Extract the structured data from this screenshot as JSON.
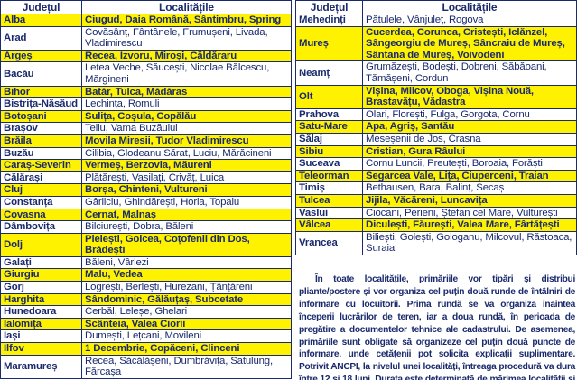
{
  "headers": {
    "county": "Județul",
    "places": "Localitățile"
  },
  "left_rows": [
    {
      "county": "Alba",
      "places": "Ciugud, Daia Română, Sântimbru, Spring",
      "hl": true
    },
    {
      "county": "Arad",
      "places": "Covăsânț, Fântânele, Frumușeni, Livada, Vladimirescu",
      "hl": false
    },
    {
      "county": "Argeș",
      "places": "Recea, Izvoru, Miroși, Căldăraru",
      "hl": true
    },
    {
      "county": "Bacău",
      "places": "Letea Veche, Săucești, Nicolae Bălcescu, Mărgineni",
      "hl": false
    },
    {
      "county": "Bihor",
      "places": "Batăr, Tulca, Mădăras",
      "hl": true
    },
    {
      "county": "Bistrița-Năsăud",
      "places": "Lechința, Romuli",
      "hl": false
    },
    {
      "county": "Botoșani",
      "places": "Sulița, Coșula, Copălău",
      "hl": true
    },
    {
      "county": "Brașov",
      "places": "Teliu, Vama Buzăului",
      "hl": false
    },
    {
      "county": "Brăila",
      "places": "Movila Miresii, Tudor Vladimirescu",
      "hl": true
    },
    {
      "county": "Buzău",
      "places": "Cilibia, Glodeanu Sărat, Luciu, Mărăcineni",
      "hl": false
    },
    {
      "county": "Caraș-Severin",
      "places": "Vermeș, Berzovia, Măureni",
      "hl": true
    },
    {
      "county": "Călărași",
      "places": "Plătărești, Vasilați, Crivăț, Luica",
      "hl": false
    },
    {
      "county": "Cluj",
      "places": "Borșa, Chinteni, Vultureni",
      "hl": true
    },
    {
      "county": "Constanța",
      "places": "Gârliciu, Ghindărești, Horia, Topalu",
      "hl": false
    },
    {
      "county": "Covasna",
      "places": "Cernat, Malnaș",
      "hl": true
    },
    {
      "county": "Dâmbovița",
      "places": "Bilciurești, Dobra, Băleni",
      "hl": false
    },
    {
      "county": "Dolj",
      "places": "Pielești, Goicea, Coțofenii din Dos, Brădești",
      "hl": true
    },
    {
      "county": "Galați",
      "places": "Băleni, Vârlezi",
      "hl": false
    },
    {
      "county": "Giurgiu",
      "places": "Malu, Vedea",
      "hl": true
    },
    {
      "county": "Gorj",
      "places": "Logrești, Berlești, Hurezani, Țânțăreni",
      "hl": false
    },
    {
      "county": "Harghita",
      "places": "Sândominic, Gălăuțaș, Subcetate",
      "hl": true
    },
    {
      "county": "Hunedoara",
      "places": "Cerbăl, Leleșe, Ghelari",
      "hl": false
    },
    {
      "county": "Ialomița",
      "places": "Scânteia, Valea Ciorii",
      "hl": true
    },
    {
      "county": "Iași",
      "places": "Dumești, Lețcani, Movileni",
      "hl": false
    },
    {
      "county": "Ilfov",
      "places": "1 Decembrie, Copăceni, Clinceni",
      "hl": true
    },
    {
      "county": "Maramureș",
      "places": "Recea, Săcălășeni, Dumbrăvița, Satulung, Fărcașa",
      "hl": false
    }
  ],
  "right_rows": [
    {
      "county": "Mehedinți",
      "places": "Pătulele, Vânjuleț, Rogova",
      "hl": false
    },
    {
      "county": "Mureș",
      "places": "Cucerdea, Corunca, Cristești, Iclănzel, Sângeorgiu de Mureș, Sâncraiu de Mureș, Sântana de Mureș, Voivodeni",
      "hl": true
    },
    {
      "county": "Neamț",
      "places": "Grumăzești, Bodești, Dobreni, Săbăoani, Tămășeni, Cordun",
      "hl": false
    },
    {
      "county": "Olt",
      "places": "Vișina, Milcov, Oboga, Vișina Nouă, Brastavățu, Vădastra",
      "hl": true
    },
    {
      "county": "Prahova",
      "places": "Olari, Florești, Fulga, Gorgota, Cornu",
      "hl": false
    },
    {
      "county": "Satu-Mare",
      "places": "Apa, Agriș, Santău",
      "hl": true
    },
    {
      "county": "Sălaj",
      "places": "Meseșenii de Jos, Crasna",
      "hl": false
    },
    {
      "county": "Sibiu",
      "places": "Cristian, Gura Râului",
      "hl": true
    },
    {
      "county": "Suceava",
      "places": "Cornu Luncii, Preutești, Boroaia, Forăști",
      "hl": false
    },
    {
      "county": "Teleorman",
      "places": "Segarcea Vale, Lița, Ciuperceni, Traian",
      "hl": true
    },
    {
      "county": "Timiș",
      "places": "Bethausen, Bara, Balinț, Secaș",
      "hl": false
    },
    {
      "county": "Tulcea",
      "places": "Jijila, Văcăreni, Luncavița",
      "hl": true
    },
    {
      "county": "Vaslui",
      "places": "Ciocani, Perieni, Ștefan cel Mare, Vulturești",
      "hl": false
    },
    {
      "county": "Vâlcea",
      "places": "Diculești, Făurești, Valea Mare, Fârtățești",
      "hl": true
    },
    {
      "county": "Vrancea",
      "places": "Biliești, Golești, Gologanu, Milcovul, Răstoaca, Suraia",
      "hl": false
    }
  ],
  "note": "În toate localitățile, primăriile vor tipări și distribui pliante/postere și vor organiza cel puțin două runde de întâlniri de informare cu locuitorii. Prima rundă se va organiza înaintea începerii lucrărilor de teren, iar a doua rundă, în perioada de pregătire a documentelor tehnice ale cadastrului. De asemenea, primăriile sunt obligate să organizeze cel puțin două puncte de informare, unde cetățenii pot solicita explicații suplimentare. Potrivit ANCPI, la nivelul unei localități, întreaga procedură va dura între 12 și 18 luni. Durata este determinată de mărimea localității și de modul cum au fost aplicate legile proprietății.",
  "colors": {
    "highlight": "#fff200",
    "ink": "#1a2a6c"
  }
}
